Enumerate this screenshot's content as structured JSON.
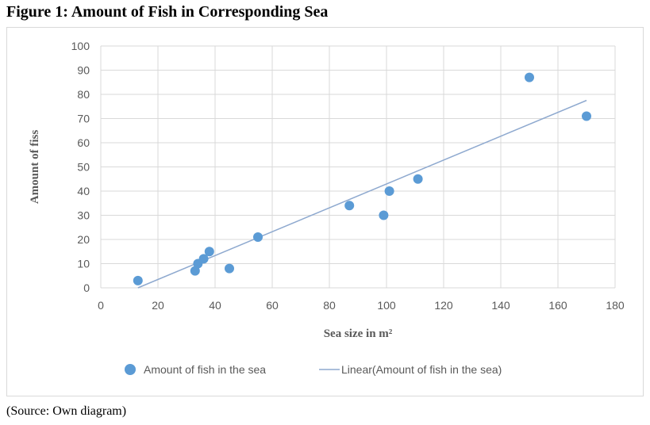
{
  "figure_title": "Figure 1: Amount of Fish in Corresponding Sea",
  "source_note": "(Source: Own diagram)",
  "chart_data": {
    "type": "scatter",
    "xlabel": "Sea size in m²",
    "ylabel": "Amount of fiss",
    "xlim": [
      0,
      180
    ],
    "ylim": [
      0,
      100
    ],
    "x_ticks": [
      0,
      20,
      40,
      60,
      80,
      100,
      120,
      140,
      160,
      180
    ],
    "y_ticks": [
      0,
      10,
      20,
      30,
      40,
      50,
      60,
      70,
      80,
      90,
      100
    ],
    "grid": true,
    "legend_position": "bottom",
    "series": [
      {
        "name": "Amount of fish in the sea",
        "kind": "points",
        "color": "#5b9bd5",
        "x": [
          13,
          33,
          34,
          36,
          38,
          45,
          55,
          87,
          99,
          101,
          111,
          150,
          170
        ],
        "y": [
          3,
          7,
          10,
          12,
          15,
          8,
          21,
          34,
          30,
          40,
          45,
          87,
          71
        ]
      },
      {
        "name": "Linear(Amount of fish in the sea)",
        "kind": "trendline",
        "color": "#8ea9cf",
        "x": [
          13,
          170
        ],
        "y": [
          0,
          77.5
        ]
      }
    ]
  }
}
